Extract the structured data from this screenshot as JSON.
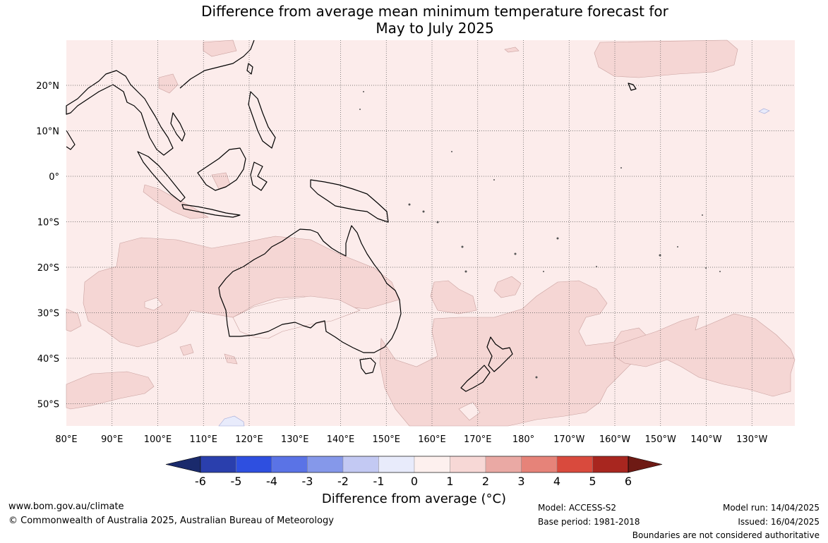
{
  "title_line1": "Difference from average mean minimum temperature forecast for",
  "title_line2": "May to July 2025",
  "lon_ticks": [
    "80°E",
    "90°E",
    "100°E",
    "110°E",
    "120°E",
    "130°E",
    "140°E",
    "150°E",
    "160°E",
    "170°E",
    "180°",
    "170°W",
    "160°W",
    "150°W",
    "140°W",
    "130°W"
  ],
  "lat_ticks": [
    "20°N",
    "10°N",
    "0°",
    "10°S",
    "20°S",
    "30°S",
    "40°S",
    "50°S"
  ],
  "colorbar": {
    "title": "Difference from average (°C)",
    "tick_labels": [
      "-6",
      "-5",
      "-4",
      "-3",
      "-2",
      "-1",
      "0",
      "1",
      "2",
      "3",
      "4",
      "5",
      "6"
    ],
    "colors": [
      "#1a2a6c",
      "#2a3fad",
      "#2e4fe0",
      "#5a73e6",
      "#8598ea",
      "#c3c9f3",
      "#e8ebfb",
      "#fdf0ee",
      "#f7d8d6",
      "#eaa9a4",
      "#e68379",
      "#d94a3d",
      "#a8261f",
      "#6e1a14"
    ]
  },
  "footer": {
    "website": "www.bom.gov.au/climate",
    "copyright": "© Commonwealth of Australia 2025, Australian Bureau of Meteorology",
    "model": "Model: ACCESS-S2",
    "base_period": "Base period: 1981-2018",
    "model_run": "Model run: 14/04/2025",
    "issued": "Issued: 16/04/2025",
    "boundaries": "Boundaries are not considered authoritative"
  }
}
